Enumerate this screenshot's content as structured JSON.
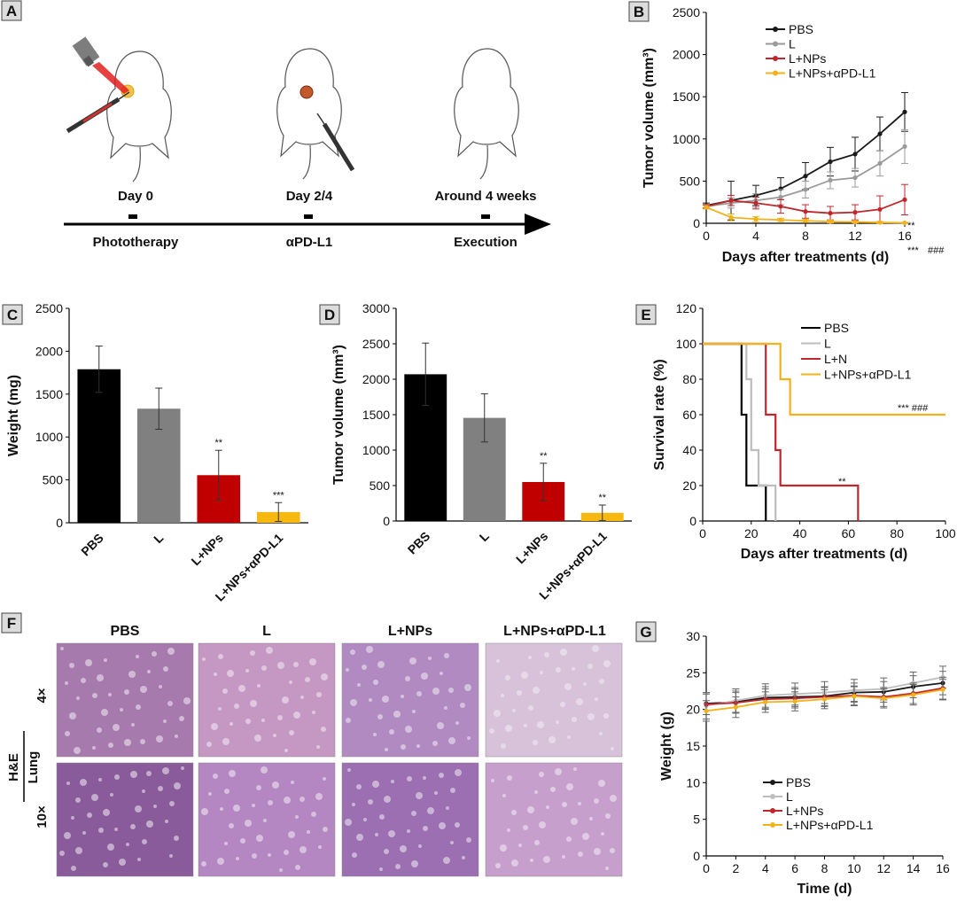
{
  "panels": {
    "A": {
      "label": "A",
      "days": [
        "Day 0",
        "Day 2/4",
        "Around 4 weeks"
      ],
      "events": [
        "Phototherapy",
        "αPD-L1",
        "Execution"
      ]
    },
    "F": {
      "label": "F",
      "columns": [
        "PBS",
        "L",
        "L+NPs",
        "L+NPs+αPD-L1"
      ],
      "rows": [
        "4×",
        "10×"
      ],
      "stain": "H&E",
      "tissue": "Lung",
      "tile_colors": [
        "#a77aad",
        "#c597c3",
        "#b08ac0",
        "#d7c2d9",
        "#8a5b9a",
        "#b487c2",
        "#9b6fb2",
        "#c79fcc"
      ]
    }
  },
  "chart_data": [
    {
      "id": "B",
      "label": "B",
      "type": "line",
      "xlabel": "Days after treatments (d)",
      "ylabel": "Tumor volume (mm³)",
      "xlim": [
        0,
        16
      ],
      "ylim": [
        0,
        2500
      ],
      "xticks": [
        "0",
        "4",
        "8",
        "12",
        "16"
      ],
      "yticks": [
        "0",
        "500",
        "1000",
        "1500",
        "2000",
        "2500"
      ],
      "x": [
        0,
        2,
        4,
        6,
        8,
        10,
        12,
        14,
        16
      ],
      "series": [
        {
          "name": "PBS",
          "color": "#1a1a1a",
          "values": [
            210,
            270,
            330,
            410,
            560,
            730,
            820,
            1060,
            1320
          ],
          "errors": [
            30,
            230,
            120,
            130,
            160,
            170,
            200,
            200,
            230
          ]
        },
        {
          "name": "L",
          "color": "#9a9a9a",
          "values": [
            200,
            240,
            270,
            310,
            400,
            510,
            540,
            710,
            910
          ],
          "errors": [
            25,
            60,
            80,
            90,
            100,
            100,
            110,
            150,
            200
          ]
        },
        {
          "name": "L+NPs",
          "color": "#c0272d",
          "values": [
            200,
            270,
            240,
            200,
            140,
            120,
            130,
            165,
            280
          ],
          "errors": [
            20,
            60,
            70,
            80,
            80,
            80,
            90,
            160,
            180
          ]
        },
        {
          "name": "L+NPs+αPD-L1",
          "color": "#f2b21b",
          "values": [
            190,
            70,
            50,
            40,
            30,
            20,
            15,
            10,
            5
          ],
          "errors": [
            20,
            40,
            30,
            20,
            20,
            15,
            10,
            10,
            5
          ]
        }
      ],
      "annotations": [
        "**",
        "***",
        "###"
      ]
    },
    {
      "id": "C",
      "label": "C",
      "type": "bar",
      "ylabel": "Weight (mg)",
      "ylim": [
        0,
        2500
      ],
      "yticks": [
        "0",
        "500",
        "1000",
        "1500",
        "2000",
        "2500"
      ],
      "categories": [
        "PBS",
        "L",
        "L+NPs",
        "L+NPs+αPD-L1"
      ],
      "values": [
        1790,
        1330,
        555,
        125
      ],
      "errors": [
        270,
        240,
        290,
        110
      ],
      "colors": [
        "#000000",
        "#808080",
        "#c00000",
        "#f7b811"
      ],
      "annotations": [
        "",
        "",
        "**",
        "***"
      ]
    },
    {
      "id": "D",
      "label": "D",
      "type": "bar",
      "ylabel": "Tumor volume (mm³)",
      "ylim": [
        0,
        3000
      ],
      "yticks": [
        "0",
        "500",
        "1000",
        "1500",
        "2000",
        "2500",
        "3000"
      ],
      "categories": [
        "PBS",
        "L",
        "L+NPs",
        "L+NPs+αPD-L1"
      ],
      "values": [
        2070,
        1455,
        550,
        115
      ],
      "errors": [
        440,
        340,
        265,
        110
      ],
      "colors": [
        "#000000",
        "#808080",
        "#c00000",
        "#f7b811"
      ],
      "annotations": [
        "",
        "",
        "**",
        "**"
      ]
    },
    {
      "id": "E",
      "label": "E",
      "type": "line",
      "xlabel": "Days after treatments (d)",
      "ylabel": "Survival rate (%)",
      "xlim": [
        0,
        100
      ],
      "ylim": [
        0,
        120
      ],
      "xticks": [
        "0",
        "20",
        "40",
        "60",
        "80",
        "100"
      ],
      "yticks": [
        "0",
        "20",
        "40",
        "60",
        "80",
        "100",
        "120"
      ],
      "series": [
        {
          "name": "PBS",
          "color": "#000000",
          "x": [
            0,
            16,
            16,
            18,
            18,
            26,
            26
          ],
          "values": [
            100,
            100,
            60,
            60,
            20,
            20,
            0
          ]
        },
        {
          "name": "L",
          "color": "#bdbdbd",
          "x": [
            0,
            18,
            18,
            20,
            20,
            23,
            23,
            26,
            26,
            30,
            30
          ],
          "values": [
            100,
            100,
            80,
            80,
            40,
            40,
            20,
            20,
            20,
            20,
            0
          ]
        },
        {
          "name": "L+N",
          "color": "#c0272d",
          "x": [
            0,
            26,
            26,
            30,
            30,
            32,
            32,
            64,
            64
          ],
          "values": [
            100,
            100,
            60,
            60,
            40,
            40,
            20,
            20,
            0
          ]
        },
        {
          "name": "L+NPs+αPD-L1",
          "color": "#f2b21b",
          "x": [
            0,
            32,
            32,
            36,
            36,
            100
          ],
          "values": [
            100,
            100,
            80,
            80,
            60,
            60
          ]
        }
      ],
      "annotations": [
        "**",
        "*** ###"
      ]
    },
    {
      "id": "G",
      "label": "G",
      "type": "line",
      "xlabel": "Time (d)",
      "ylabel": "Weight (g)",
      "xlim": [
        0,
        16
      ],
      "ylim": [
        0,
        30
      ],
      "xticks": [
        "0",
        "2",
        "4",
        "6",
        "8",
        "10",
        "12",
        "14",
        "16"
      ],
      "yticks": [
        "0",
        "5",
        "10",
        "15",
        "20",
        "25",
        "30"
      ],
      "x": [
        0,
        2,
        4,
        6,
        8,
        10,
        12,
        14,
        16
      ],
      "series": [
        {
          "name": "PBS",
          "color": "#1a1a1a",
          "values": [
            20.8,
            21.0,
            21.6,
            21.7,
            21.8,
            22.3,
            22.4,
            23.1,
            23.6
          ],
          "errors": [
            1.5,
            1.5,
            1.5,
            1.3,
            1.3,
            1.3,
            1.4,
            1.5,
            1.6
          ]
        },
        {
          "name": "L",
          "color": "#bdbdbd",
          "values": [
            20.5,
            21.2,
            21.9,
            22.1,
            22.3,
            22.6,
            22.8,
            23.6,
            24.4
          ],
          "errors": [
            1.8,
            1.6,
            1.6,
            1.5,
            1.5,
            1.5,
            1.5,
            1.5,
            1.5
          ]
        },
        {
          "name": "L+NPs",
          "color": "#c0272d",
          "values": [
            20.7,
            20.9,
            21.4,
            21.5,
            21.7,
            21.9,
            21.7,
            22.2,
            22.9
          ],
          "errors": [
            1.4,
            1.4,
            1.4,
            1.3,
            1.3,
            1.3,
            1.3,
            1.4,
            1.5
          ]
        },
        {
          "name": "L+NPs+αPD-L1",
          "color": "#f2b21b",
          "values": [
            19.8,
            20.3,
            21.0,
            21.1,
            21.4,
            21.8,
            21.5,
            22.0,
            22.7
          ],
          "errors": [
            1.4,
            1.4,
            1.4,
            1.3,
            1.3,
            1.3,
            1.3,
            1.4,
            1.4
          ]
        }
      ]
    }
  ]
}
